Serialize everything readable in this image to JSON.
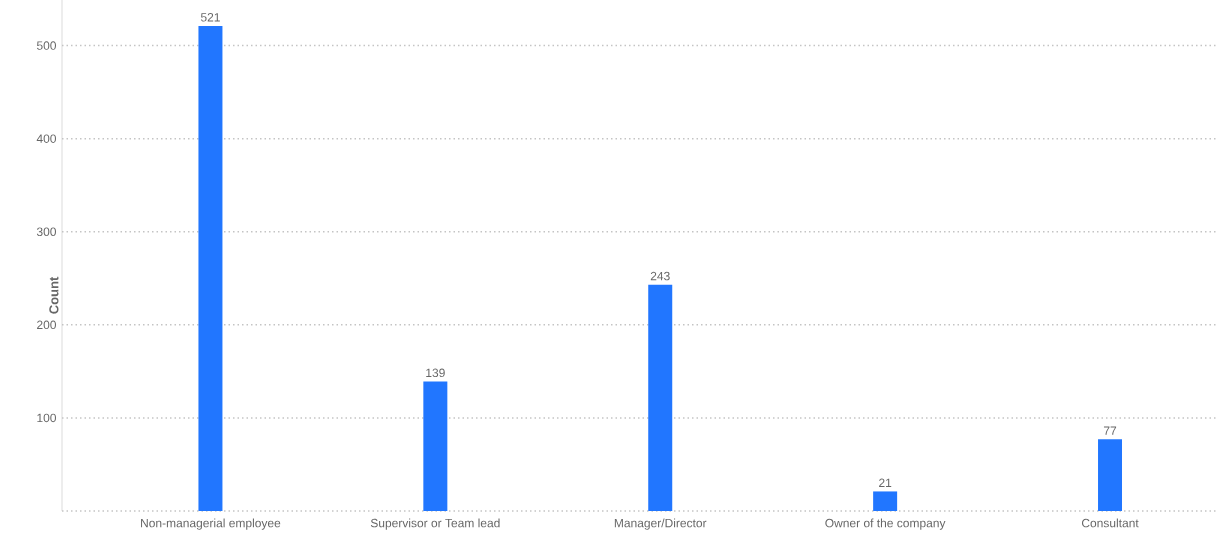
{
  "chart_data": {
    "type": "bar",
    "ylabel": "Count",
    "categories": [
      "Non-managerial employee",
      "Supervisor or Team lead",
      "Manager/Director",
      "Owner of the company",
      "Consultant"
    ],
    "values": [
      521,
      139,
      243,
      21,
      77
    ],
    "color": "#2176ff",
    "ylim": [
      0,
      549
    ],
    "yticks": [
      {
        "value": 0,
        "label": null
      },
      100,
      200,
      300,
      400,
      500
    ],
    "grid": "y",
    "data_labels": true
  }
}
